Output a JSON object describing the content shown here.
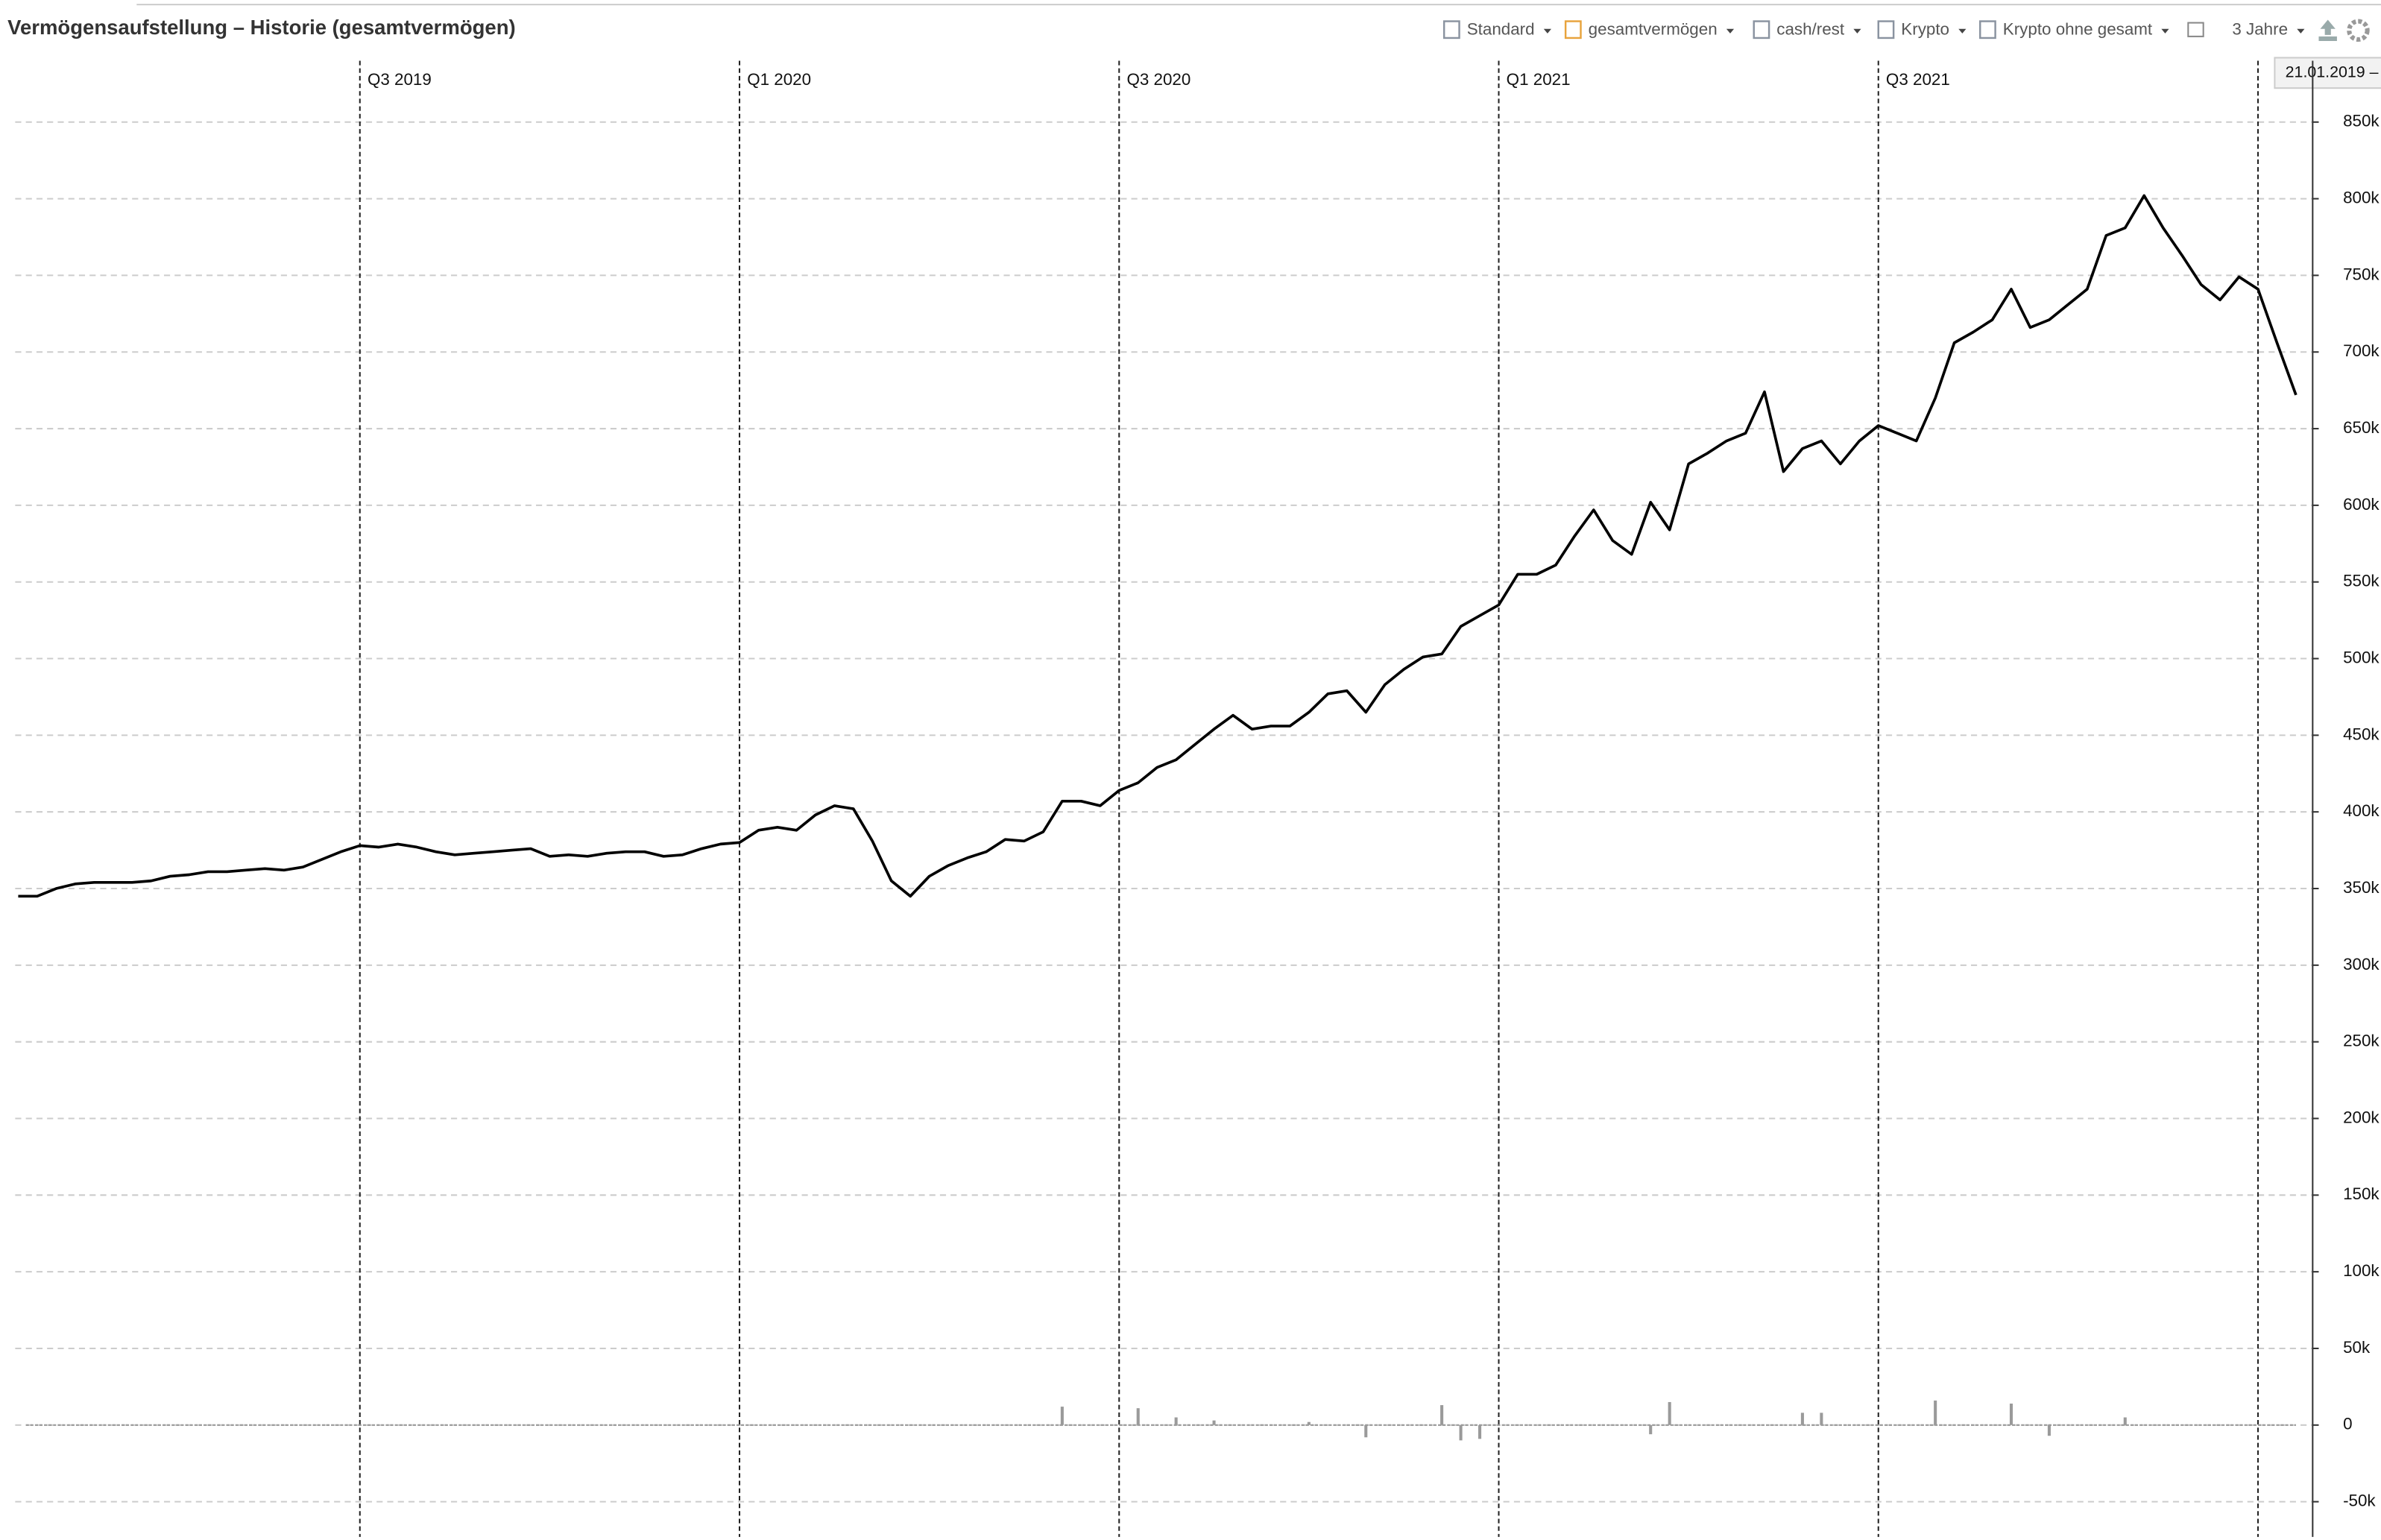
{
  "header": {
    "title": "Vermögensaufstellung – Historie (gesamtvermögen)"
  },
  "toolbar": {
    "items": [
      {
        "label": "Standard",
        "color": "#8a93a0"
      },
      {
        "label": "gesamtvermögen",
        "color": "#e8a33c"
      },
      {
        "label": "cash/rest",
        "color": "#8a93a0"
      },
      {
        "label": "Krypto",
        "color": "#8a93a0"
      },
      {
        "label": "Krypto ohne gesamt",
        "color": "#8a93a0"
      }
    ],
    "range": "3 Jahre",
    "date_badge": "21.01.2019 –"
  },
  "chart_data": {
    "type": "line",
    "categories": [
      null,
      null,
      null,
      null,
      null,
      null,
      null,
      null,
      null,
      null,
      null,
      null,
      null,
      null,
      null,
      null,
      null,
      null,
      "Q3 2019",
      null,
      null,
      null,
      null,
      null,
      null,
      null,
      null,
      null,
      null,
      null,
      null,
      null,
      null,
      null,
      null,
      null,
      null,
      null,
      "Q1 2020",
      null,
      null,
      null,
      null,
      null,
      null,
      null,
      null,
      null,
      null,
      null,
      null,
      null,
      null,
      null,
      null,
      null,
      null,
      null,
      "Q3 2020",
      null,
      null,
      null,
      null,
      null,
      null,
      null,
      null,
      null,
      null,
      null,
      null,
      null,
      null,
      null,
      null,
      null,
      null,
      null,
      "Q1 2021",
      null,
      null,
      null,
      null,
      null,
      null,
      null,
      null,
      null,
      null,
      null,
      null,
      null,
      null,
      null,
      null,
      null,
      null,
      null,
      "Q3 2021",
      null,
      null,
      null,
      null,
      null,
      null,
      null,
      null,
      null,
      null,
      null,
      null,
      null,
      null,
      null,
      null,
      null,
      null,
      null,
      null,
      null,
      null
    ],
    "series": [
      {
        "color": "#000000",
        "values": [
          345000,
          345000,
          350000,
          353000,
          354000,
          354000,
          354000,
          355000,
          358000,
          359000,
          361000,
          361000,
          362000,
          363000,
          362000,
          364000,
          369000,
          374000,
          378000,
          377000,
          379000,
          377000,
          374000,
          372000,
          373000,
          374000,
          375000,
          376000,
          371000,
          372000,
          371000,
          373000,
          374000,
          374000,
          371000,
          372000,
          376000,
          379000,
          380000,
          388000,
          390000,
          388000,
          398000,
          404000,
          402000,
          381000,
          355000,
          345000,
          358000,
          365000,
          370000,
          374000,
          382000,
          381000,
          387000,
          407000,
          407000,
          404000,
          414000,
          419000,
          429000,
          434000,
          444000,
          454000,
          463000,
          454000,
          456000,
          456000,
          465000,
          477000,
          479000,
          465000,
          483000,
          493000,
          501000,
          503000,
          521000,
          528000,
          535000,
          555000,
          555000,
          561000,
          580000,
          597000,
          577000,
          568000,
          602000,
          584000,
          627000,
          634000,
          642000,
          647000,
          674000,
          622000,
          637000,
          642000,
          627000,
          642000,
          652000,
          647000,
          642000,
          670000,
          706000,
          713000,
          721000,
          741000,
          716000,
          721000,
          731000,
          741000,
          776000,
          781000,
          802000,
          781000,
          763000,
          744000,
          734000,
          749000,
          741000,
          706000,
          672000
        ]
      },
      {
        "type": "bar",
        "color": "#9a9a9a",
        "values": [
          null,
          null,
          null,
          null,
          null,
          null,
          null,
          null,
          null,
          null,
          null,
          null,
          null,
          null,
          null,
          null,
          null,
          null,
          null,
          null,
          null,
          null,
          null,
          null,
          null,
          null,
          null,
          null,
          null,
          null,
          null,
          null,
          null,
          null,
          null,
          null,
          null,
          null,
          null,
          null,
          null,
          null,
          null,
          null,
          null,
          null,
          null,
          null,
          null,
          null,
          null,
          null,
          null,
          null,
          null,
          12000,
          null,
          null,
          null,
          11000,
          null,
          5000,
          null,
          3000,
          null,
          null,
          null,
          null,
          2000,
          null,
          null,
          -8000,
          null,
          null,
          null,
          13000,
          -10000,
          -9000,
          null,
          null,
          null,
          null,
          null,
          null,
          null,
          null,
          -6000,
          15000,
          null,
          null,
          null,
          null,
          null,
          null,
          8000,
          8000,
          null,
          null,
          null,
          null,
          null,
          16000,
          null,
          null,
          null,
          14000,
          null,
          -7000,
          null,
          null,
          null,
          5000,
          null,
          null,
          null,
          null,
          null,
          null,
          null,
          null,
          null
        ]
      }
    ],
    "ylim": [
      -73000,
      890000
    ],
    "yticks": [
      {
        "value": -50000,
        "label": "-50k"
      },
      0,
      {
        "value": 50000,
        "label": "50k"
      },
      {
        "value": 100000,
        "label": "100k"
      },
      {
        "value": 150000,
        "label": "150k"
      },
      {
        "value": 200000,
        "label": "200k"
      },
      {
        "value": 250000,
        "label": "250k"
      },
      {
        "value": 300000,
        "label": "300k"
      },
      {
        "value": 350000,
        "label": "350k"
      },
      {
        "value": 400000,
        "label": "400k"
      },
      {
        "value": 450000,
        "label": "450k"
      },
      {
        "value": 500000,
        "label": "500k"
      },
      {
        "value": 550000,
        "label": "550k"
      },
      {
        "value": 600000,
        "label": "600k"
      },
      {
        "value": 650000,
        "label": "650k"
      },
      {
        "value": 700000,
        "label": "700k"
      },
      {
        "value": 750000,
        "label": "750k"
      },
      {
        "value": 800000,
        "label": "800k"
      },
      {
        "value": 850000,
        "label": "850k"
      }
    ],
    "grid": true
  }
}
